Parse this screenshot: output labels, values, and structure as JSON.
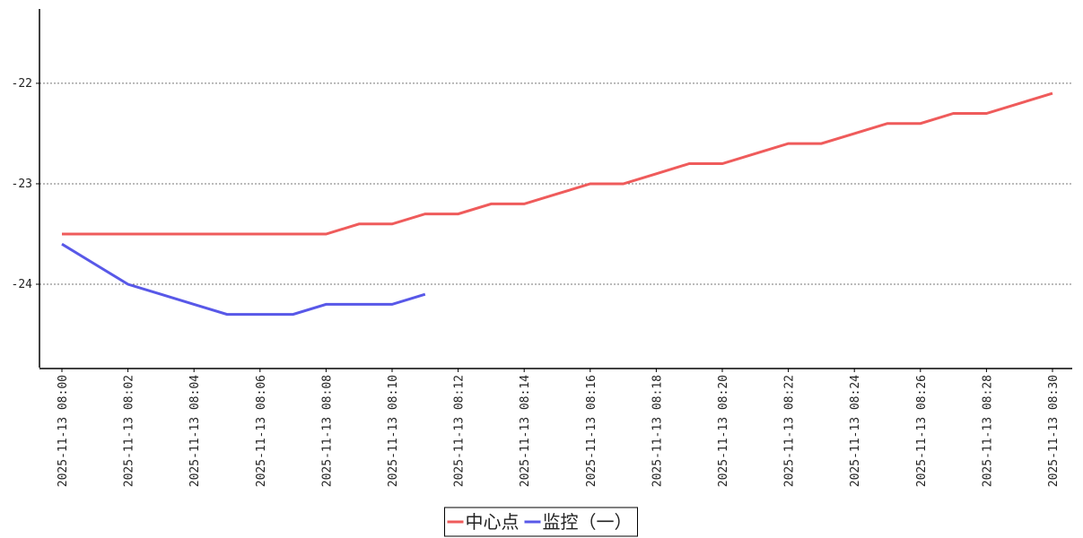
{
  "chart_data": {
    "type": "line",
    "categories": [
      "2025-11-13 08:00",
      null,
      "2025-11-13 08:02",
      null,
      "2025-11-13 08:04",
      null,
      "2025-11-13 08:06",
      null,
      "2025-11-13 08:08",
      null,
      "2025-11-13 08:10",
      null,
      "2025-11-13 08:12",
      null,
      "2025-11-13 08:14",
      null,
      "2025-11-13 08:16",
      null,
      "2025-11-13 08:18",
      null,
      "2025-11-13 08:20",
      null,
      "2025-11-13 08:22",
      null,
      "2025-11-13 08:24",
      null,
      "2025-11-13 08:26",
      null,
      "2025-11-13 08:28",
      null,
      "2025-11-13 08:30"
    ],
    "series": [
      {
        "name": "中心点",
        "color": "#ef5b5b",
        "values": [
          -23.5,
          -23.5,
          -23.5,
          -23.5,
          -23.5,
          -23.5,
          -23.5,
          -23.5,
          -23.5,
          -23.4,
          -23.4,
          -23.3,
          -23.3,
          -23.2,
          -23.2,
          -23.1,
          -23.0,
          -23.0,
          -22.9,
          -22.8,
          -22.8,
          -22.7,
          -22.6,
          -22.6,
          -22.5,
          -22.4,
          -22.4,
          -22.3,
          -22.3,
          -22.2,
          -22.1
        ]
      },
      {
        "name": "监控（一）",
        "color": "#5858e8",
        "values": [
          -23.6,
          -23.8,
          -24.0,
          -24.1,
          -24.2,
          -24.3,
          -24.3,
          -24.3,
          -24.2,
          -24.2,
          -24.2,
          -24.1,
          null,
          null,
          null,
          null,
          null,
          null,
          null,
          null,
          null,
          null,
          null,
          null,
          null,
          null,
          null,
          null,
          null,
          null,
          null
        ]
      }
    ],
    "ylim": [
      -24.83,
      -21.26
    ],
    "yticks": [
      -24,
      -23,
      -22
    ],
    "grid": true,
    "legend": "bottom"
  }
}
